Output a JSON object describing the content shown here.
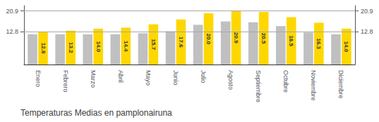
{
  "chart_data": {
    "type": "bar",
    "title": "Temperaturas Medias en pamplonairuna",
    "categories": [
      "Enero",
      "Febrero",
      "Marzo",
      "Abril",
      "Mayo",
      "Junio",
      "Julio",
      "Agosto",
      "Septiembre",
      "Octubre",
      "Noviembre",
      "Diciembre"
    ],
    "series": [
      {
        "color": "#C0C0C0",
        "values": [
          11.8,
          11.8,
          11.8,
          11.8,
          12.2,
          13.0,
          15.5,
          16.8,
          16.5,
          15.0,
          12.5,
          11.8
        ]
      },
      {
        "color": "#FFD700",
        "values": [
          12.8,
          13.2,
          14.0,
          14.4,
          15.7,
          17.6,
          20.0,
          20.9,
          20.5,
          18.5,
          16.3,
          14.0
        ],
        "data_labels": true,
        "value_labels": [
          "12.8",
          "13.2",
          "14.0",
          "14.4",
          "15.7",
          "17.6",
          "20.0",
          "20.9",
          "20.5",
          "18.5",
          "16.3",
          "14.0"
        ]
      }
    ],
    "ylim": [
      0,
      22.99
    ],
    "yticks": [
      12.8,
      20.9
    ],
    "y2lim": [
      0,
      22.99
    ],
    "y2ticks": [
      12.8,
      20.9
    ],
    "grid": true
  }
}
